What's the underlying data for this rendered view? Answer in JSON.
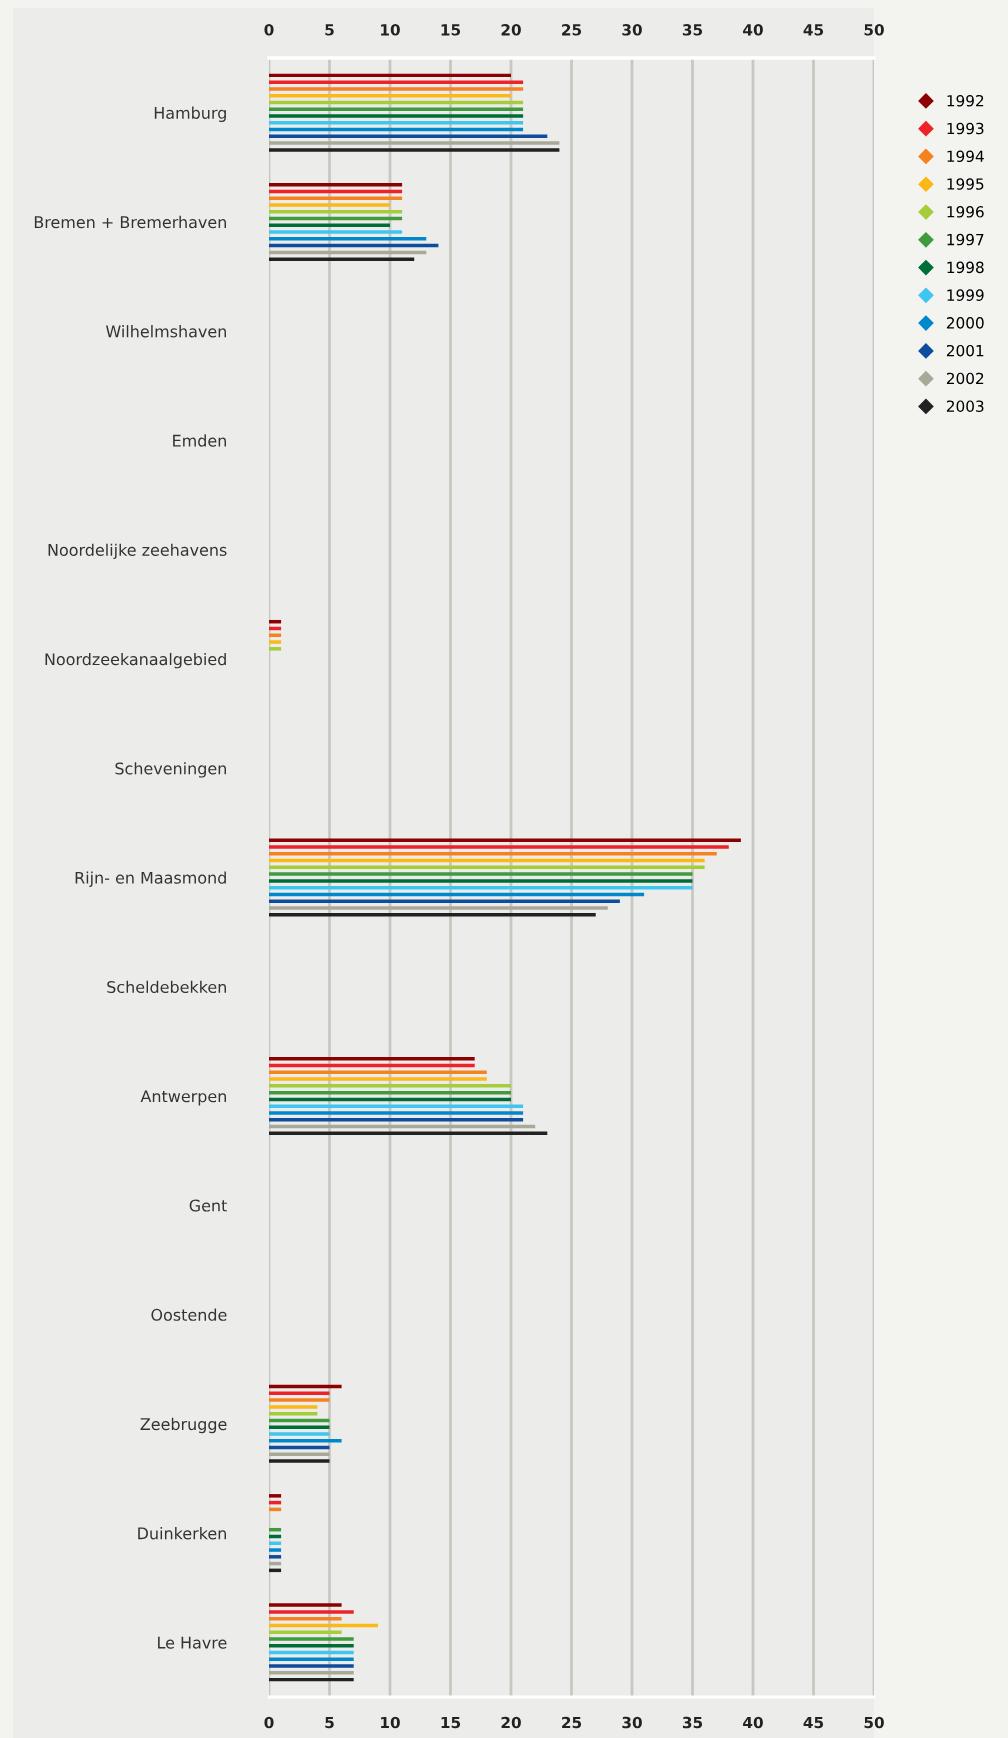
{
  "chart_data": {
    "type": "bar",
    "orientation": "horizontal",
    "categories": [
      "Hamburg",
      "Bremen + Bremerhaven",
      "Wilhelmshaven",
      "Emden",
      "Noordelijke zeehavens",
      "Noordzeekanaalgebied",
      "Scheveningen",
      "Rijn- en Maasmond",
      "Scheldebekken",
      "Antwerpen",
      "Gent",
      "Oostende",
      "Zeebrugge",
      "Duinkerken",
      "Le Havre"
    ],
    "series": [
      {
        "name": "1992",
        "color": "#8b0000",
        "values": [
          20,
          11,
          0,
          0,
          0,
          1,
          0,
          39,
          0,
          17,
          0,
          0,
          6,
          1,
          6
        ]
      },
      {
        "name": "1993",
        "color": "#ee2229",
        "values": [
          21,
          11,
          0,
          0,
          0,
          1,
          0,
          38,
          0,
          17,
          0,
          0,
          5,
          1,
          7
        ]
      },
      {
        "name": "1994",
        "color": "#f58220",
        "values": [
          21,
          11,
          0,
          0,
          0,
          1,
          0,
          37,
          0,
          18,
          0,
          0,
          5,
          1,
          6
        ]
      },
      {
        "name": "1995",
        "color": "#fbb816",
        "values": [
          20,
          10,
          0,
          0,
          0,
          1,
          0,
          36,
          0,
          18,
          0,
          0,
          4,
          0,
          9
        ]
      },
      {
        "name": "1996",
        "color": "#a6cd39",
        "values": [
          21,
          11,
          0,
          0,
          0,
          1,
          0,
          36,
          0,
          20,
          0,
          0,
          4,
          0,
          6
        ]
      },
      {
        "name": "1997",
        "color": "#3f9b3d",
        "values": [
          21,
          11,
          0,
          0,
          0,
          0,
          0,
          35,
          0,
          20,
          0,
          0,
          5,
          1,
          7
        ]
      },
      {
        "name": "1998",
        "color": "#006d38",
        "values": [
          21,
          10,
          0,
          0,
          0,
          0,
          0,
          35,
          0,
          20,
          0,
          0,
          5,
          1,
          7
        ]
      },
      {
        "name": "1999",
        "color": "#3fc6f0",
        "values": [
          21,
          11,
          0,
          0,
          0,
          0,
          0,
          35,
          0,
          21,
          0,
          0,
          5,
          1,
          7
        ]
      },
      {
        "name": "2000",
        "color": "#0088cc",
        "values": [
          21,
          13,
          0,
          0,
          0,
          0,
          0,
          31,
          0,
          21,
          0,
          0,
          6,
          1,
          7
        ]
      },
      {
        "name": "2001",
        "color": "#0e4c9e",
        "values": [
          23,
          14,
          0,
          0,
          0,
          0,
          0,
          29,
          0,
          21,
          0,
          0,
          5,
          1,
          7
        ]
      },
      {
        "name": "2002",
        "color": "#a9a99a",
        "values": [
          24,
          13,
          0,
          0,
          0,
          0,
          0,
          28,
          0,
          22,
          0,
          0,
          5,
          1,
          7
        ]
      },
      {
        "name": "2003",
        "color": "#222222",
        "values": [
          24,
          12,
          0,
          0,
          0,
          0,
          0,
          27,
          0,
          23,
          0,
          0,
          5,
          1,
          7
        ]
      }
    ],
    "xlim": [
      0,
      50
    ],
    "xticks": [
      0,
      5,
      10,
      15,
      20,
      25,
      30,
      35,
      40,
      45,
      50
    ],
    "x2lim": [
      0,
      50
    ],
    "x2ticks": [
      0,
      5,
      10,
      15,
      20,
      25,
      30,
      35,
      40,
      45,
      50
    ],
    "grid": "x",
    "legend": "top right",
    "marker": "diamond"
  }
}
